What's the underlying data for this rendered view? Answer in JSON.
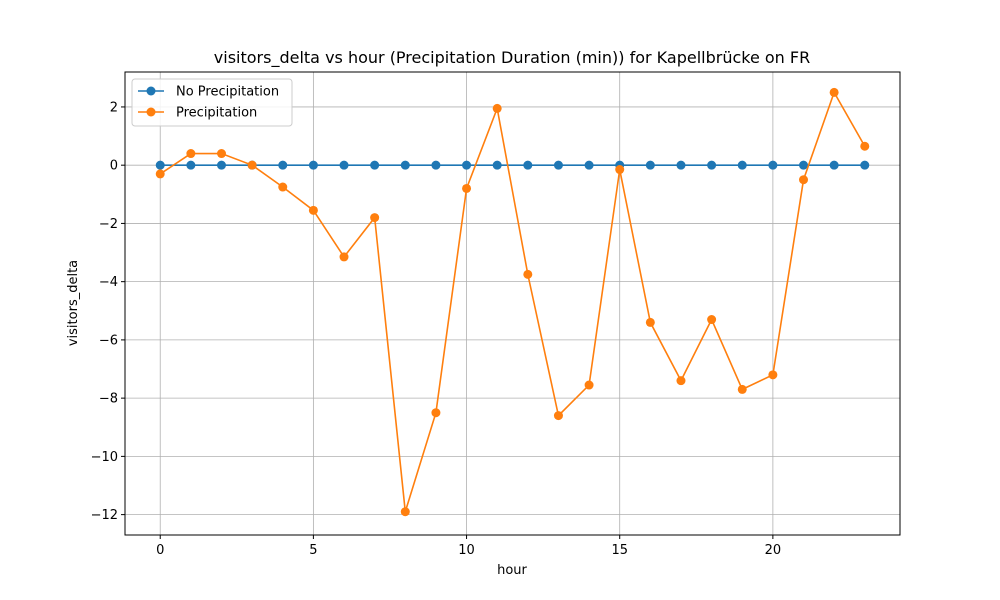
{
  "chart_data": {
    "type": "line",
    "title": "visitors_delta vs hour (Precipitation Duration (min)) for Kapellbrücke on FR",
    "xlabel": "hour",
    "ylabel": "visitors_delta",
    "xlim": [
      -1.15,
      24.15
    ],
    "ylim": [
      -12.7,
      3.2
    ],
    "xticks": [
      0,
      5,
      10,
      15,
      20
    ],
    "yticks": [
      2,
      0,
      -2,
      -4,
      -6,
      -8,
      -10,
      -12
    ],
    "xtick_labels": [
      "0",
      "5",
      "10",
      "15",
      "20"
    ],
    "ytick_labels": [
      "2",
      "0",
      "−2",
      "−4",
      "−6",
      "−8",
      "−10",
      "−12"
    ],
    "grid": true,
    "legend_position": "top-left",
    "x": [
      0,
      1,
      2,
      3,
      4,
      5,
      6,
      7,
      8,
      9,
      10,
      11,
      12,
      13,
      14,
      15,
      16,
      17,
      18,
      19,
      20,
      21,
      22,
      23
    ],
    "series": [
      {
        "name": "No Precipitation",
        "color": "#1f77b4",
        "values": [
          0,
          0,
          0,
          0,
          0,
          0,
          0,
          0,
          0,
          0,
          0,
          0,
          0,
          0,
          0,
          0,
          0,
          0,
          0,
          0,
          0,
          0,
          0,
          0
        ]
      },
      {
        "name": "Precipitation",
        "color": "#ff7f0e",
        "values": [
          -0.3,
          0.4,
          0.4,
          0.0,
          -0.75,
          -1.55,
          -3.15,
          -1.8,
          -11.9,
          -8.5,
          -0.8,
          1.95,
          -3.75,
          -8.6,
          -7.55,
          -0.15,
          -5.4,
          -7.4,
          -5.3,
          -7.7,
          -7.2,
          -0.5,
          2.5,
          0.65
        ]
      }
    ]
  }
}
